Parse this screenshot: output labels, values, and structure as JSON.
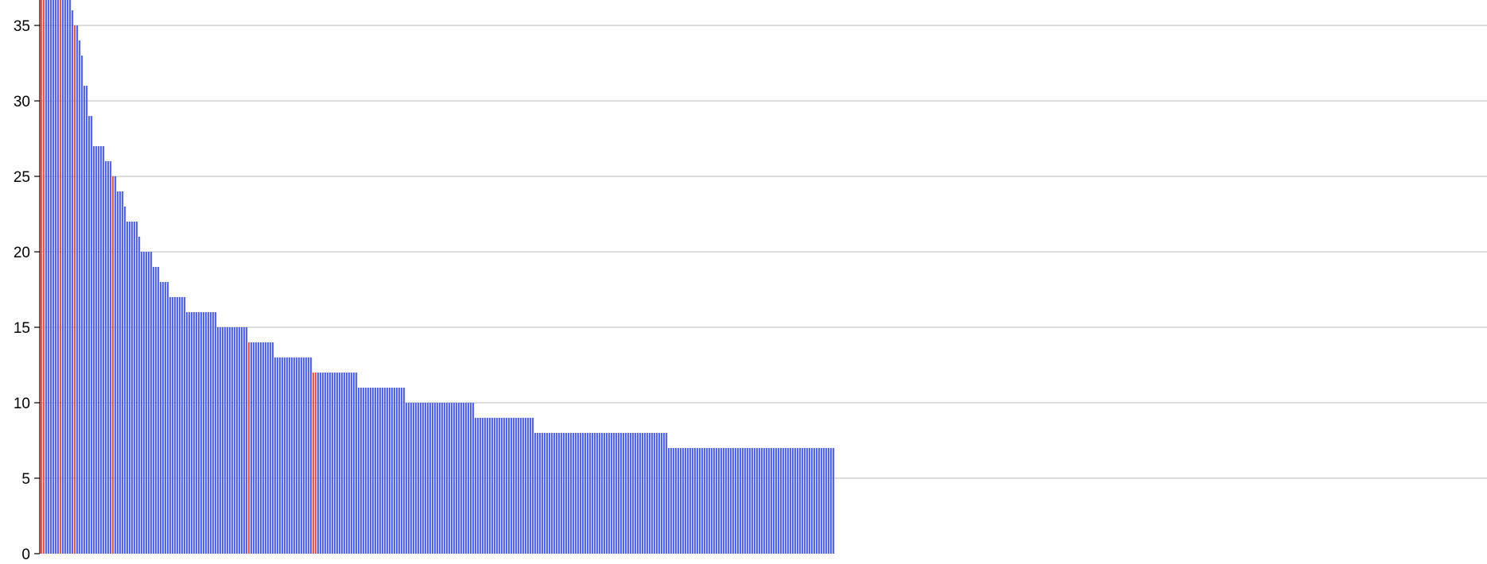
{
  "chart_data": {
    "type": "bar",
    "title": "",
    "xlabel": "",
    "ylabel": "",
    "ylim": [
      0,
      35.8
    ],
    "yticks": [
      0,
      5,
      10,
      15,
      20,
      25,
      30,
      35
    ],
    "grid": true,
    "legend": "none",
    "colors": {
      "normal": "#5566ee",
      "highlight": "#ee5544",
      "grid": "#c8c8c8",
      "axis": "#000000"
    },
    "highlight_indices": [
      0,
      1,
      8,
      14,
      30,
      87,
      114,
      115
    ],
    "series": [
      {
        "runs": [
          {
            "value": 40,
            "count": 13
          },
          {
            "value": 36,
            "count": 1
          },
          {
            "value": 35,
            "count": 2
          },
          {
            "value": 34,
            "count": 1
          },
          {
            "value": 33,
            "count": 1
          },
          {
            "value": 31,
            "count": 2
          },
          {
            "value": 29,
            "count": 2
          },
          {
            "value": 27,
            "count": 5
          },
          {
            "value": 26,
            "count": 3
          },
          {
            "value": 25,
            "count": 2
          },
          {
            "value": 24,
            "count": 3
          },
          {
            "value": 23,
            "count": 1
          },
          {
            "value": 22,
            "count": 5
          },
          {
            "value": 21,
            "count": 1
          },
          {
            "value": 20,
            "count": 5
          },
          {
            "value": 19,
            "count": 3
          },
          {
            "value": 18,
            "count": 4
          },
          {
            "value": 17,
            "count": 7
          },
          {
            "value": 16,
            "count": 13
          },
          {
            "value": 15,
            "count": 13
          },
          {
            "value": 14,
            "count": 11
          },
          {
            "value": 13,
            "count": 16
          },
          {
            "value": 12,
            "count": 19
          },
          {
            "value": 11,
            "count": 20
          },
          {
            "value": 10,
            "count": 29
          },
          {
            "value": 9,
            "count": 25
          },
          {
            "value": 8,
            "count": 56
          },
          {
            "value": 7,
            "count": 70
          }
        ]
      }
    ]
  }
}
